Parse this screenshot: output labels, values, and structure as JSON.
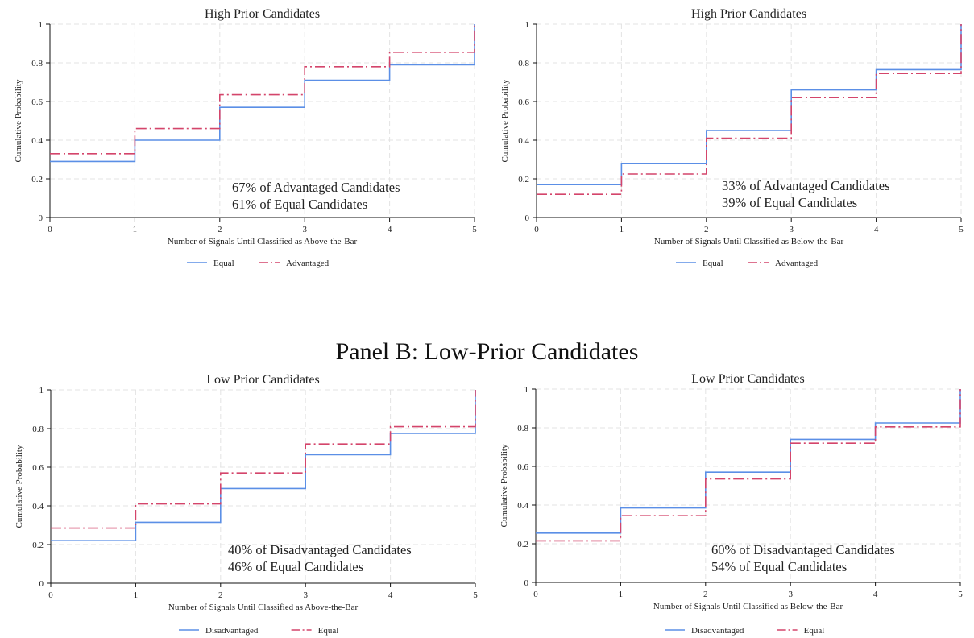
{
  "panel_b_title": "Panel B: Low-Prior Candidates",
  "colors": {
    "equal_blue": "#5b8fe6",
    "red": "#d4456b"
  },
  "chart_data": [
    {
      "type": "line",
      "step": true,
      "title": "High Prior Candidates",
      "xlabel": "Number of Signals Until Classified as Above-the-Bar",
      "ylabel": "Cumulative Probability",
      "x": [
        0,
        1,
        2,
        3,
        4,
        5
      ],
      "xlim": [
        0,
        5
      ],
      "ylim": [
        0,
        1
      ],
      "xticks": [
        "0",
        "1",
        "2",
        "3",
        "4",
        "5"
      ],
      "yticks": [
        "0",
        "0.2",
        "0.4",
        "0.6",
        "0.8",
        "1"
      ],
      "series": [
        {
          "name": "Equal",
          "style": "solid",
          "color": "#5b8fe6",
          "values": [
            0.29,
            0.4,
            0.57,
            0.71,
            0.79,
            1.0
          ]
        },
        {
          "name": "Advantaged",
          "style": "dashed",
          "color": "#d4456b",
          "values": [
            0.33,
            0.46,
            0.635,
            0.78,
            0.855,
            1.0
          ]
        }
      ],
      "annotations": [
        "67% of Advantaged Candidates",
        "61% of Equal Candidates"
      ],
      "legend": [
        "Equal",
        "Advantaged"
      ]
    },
    {
      "type": "line",
      "step": true,
      "title": "High Prior Candidates",
      "xlabel": "Number of Signals Until Classified as Below-the-Bar",
      "ylabel": "Cumulative Probability",
      "x": [
        0,
        1,
        2,
        3,
        4,
        5
      ],
      "xlim": [
        0,
        5
      ],
      "ylim": [
        0,
        1
      ],
      "xticks": [
        "0",
        "1",
        "2",
        "3",
        "4",
        "5"
      ],
      "yticks": [
        "0",
        "0.2",
        "0.4",
        "0.6",
        "0.8",
        "1"
      ],
      "series": [
        {
          "name": "Equal",
          "style": "solid",
          "color": "#5b8fe6",
          "values": [
            0.17,
            0.28,
            0.45,
            0.66,
            0.765,
            1.0
          ]
        },
        {
          "name": "Advantaged",
          "style": "dashed",
          "color": "#d4456b",
          "values": [
            0.12,
            0.225,
            0.41,
            0.62,
            0.745,
            1.0
          ]
        }
      ],
      "annotations": [
        "33% of Advantaged Candidates",
        "39% of Equal Candidates"
      ],
      "legend": [
        "Equal",
        "Advantaged"
      ]
    },
    {
      "type": "line",
      "step": true,
      "title": "Low Prior Candidates",
      "xlabel": "Number of Signals Until Classified as Above-the-Bar",
      "ylabel": "Cumulative Probability",
      "x": [
        0,
        1,
        2,
        3,
        4,
        5
      ],
      "xlim": [
        0,
        5
      ],
      "ylim": [
        0,
        1
      ],
      "xticks": [
        "0",
        "1",
        "2",
        "3",
        "4",
        "5"
      ],
      "yticks": [
        "0",
        "0.2",
        "0.4",
        "0.6",
        "0.8",
        "1"
      ],
      "series": [
        {
          "name": "Disadvantaged",
          "style": "solid",
          "color": "#5b8fe6",
          "values": [
            0.22,
            0.315,
            0.49,
            0.665,
            0.775,
            1.0
          ]
        },
        {
          "name": "Equal",
          "style": "dashed",
          "color": "#d4456b",
          "values": [
            0.285,
            0.41,
            0.57,
            0.72,
            0.81,
            1.0
          ]
        }
      ],
      "annotations": [
        "40% of Disadvantaged Candidates",
        "46% of Equal Candidates"
      ],
      "legend": [
        "Disadvantaged",
        "Equal"
      ]
    },
    {
      "type": "line",
      "step": true,
      "title": "Low Prior Candidates",
      "xlabel": "Number of Signals Until Classified as Below-the-Bar",
      "ylabel": "Cumulative Probability",
      "x": [
        0,
        1,
        2,
        3,
        4,
        5
      ],
      "xlim": [
        0,
        5
      ],
      "ylim": [
        0,
        1
      ],
      "xticks": [
        "0",
        "1",
        "2",
        "3",
        "4",
        "5"
      ],
      "yticks": [
        "0",
        "0.2",
        "0.4",
        "0.6",
        "0.8",
        "1"
      ],
      "series": [
        {
          "name": "Disadvantaged",
          "style": "solid",
          "color": "#5b8fe6",
          "values": [
            0.255,
            0.385,
            0.57,
            0.74,
            0.825,
            1.0
          ]
        },
        {
          "name": "Equal",
          "style": "dashed",
          "color": "#d4456b",
          "values": [
            0.215,
            0.345,
            0.535,
            0.72,
            0.805,
            1.0
          ]
        }
      ],
      "annotations": [
        "60% of Disadvantaged Candidates",
        "54% of Equal Candidates"
      ],
      "legend": [
        "Disadvantaged",
        "Equal"
      ]
    }
  ]
}
